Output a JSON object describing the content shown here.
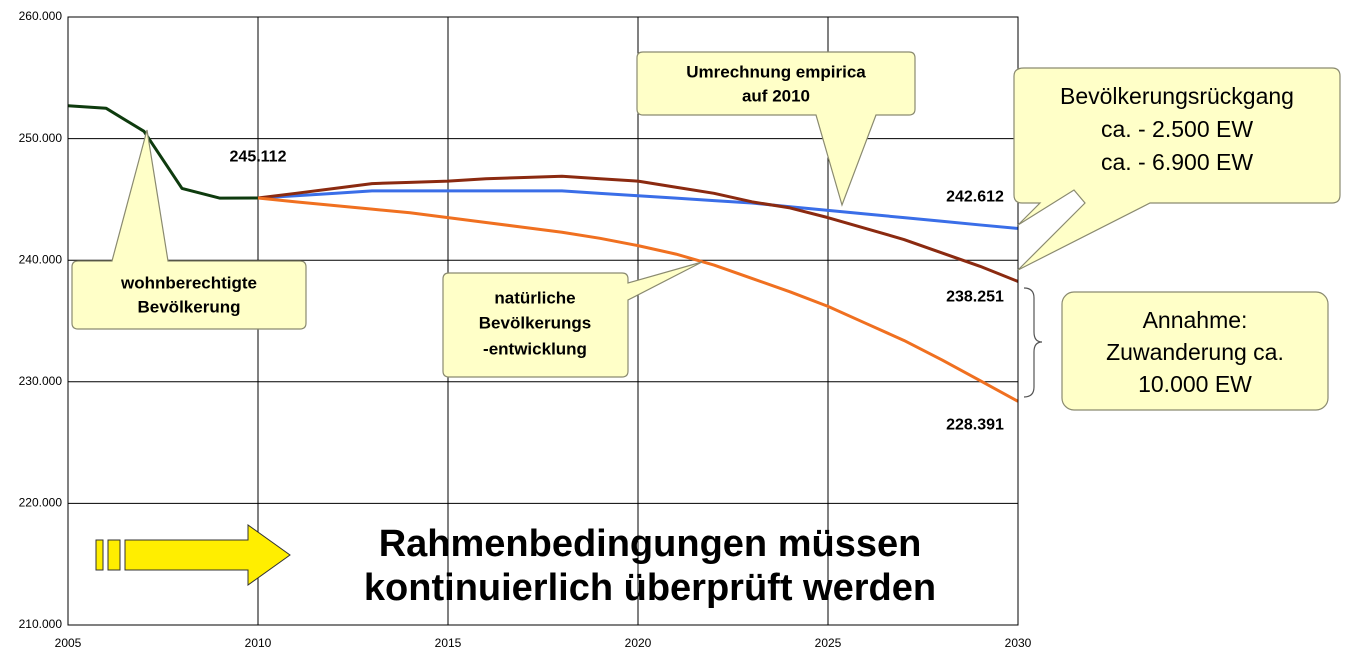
{
  "chart_data": {
    "type": "line",
    "x": [
      2005,
      2006,
      2007,
      2008,
      2009,
      2010,
      2011,
      2012,
      2013,
      2014,
      2015,
      2016,
      2017,
      2018,
      2019,
      2020,
      2021,
      2022,
      2023,
      2024,
      2025,
      2026,
      2027,
      2028,
      2029,
      2030
    ],
    "xlim": [
      2005,
      2030
    ],
    "xticks": [
      2005,
      2010,
      2015,
      2020,
      2025,
      2030
    ],
    "ylim": [
      210000,
      260000
    ],
    "yticks": [
      {
        "value": 210000,
        "label": "210.000"
      },
      {
        "value": 220000,
        "label": "220.000"
      },
      {
        "value": 230000,
        "label": "230.000"
      },
      {
        "value": 240000,
        "label": "240.000"
      },
      {
        "value": 250000,
        "label": "250.000"
      },
      {
        "value": 260000,
        "label": "260.000"
      }
    ],
    "grid": true,
    "series": [
      {
        "color": "#0e3b0e",
        "values": [
          252700,
          252500,
          250600,
          245900,
          245100,
          245112,
          null,
          null,
          null,
          null,
          null,
          null,
          null,
          null,
          null,
          null,
          null,
          null,
          null,
          null,
          null,
          null,
          null,
          null,
          null,
          null
        ],
        "value_labels": [
          null,
          null,
          null,
          null,
          null,
          "245.112",
          null,
          null,
          null,
          null,
          null,
          null,
          null,
          null,
          null,
          null,
          null,
          null,
          null,
          null,
          null,
          null,
          null,
          null,
          null,
          null
        ]
      },
      {
        "color": "#3a6ee8",
        "values": [
          null,
          null,
          null,
          null,
          null,
          245112,
          245300,
          245500,
          245700,
          245700,
          245700,
          245700,
          245700,
          245700,
          245500,
          245300,
          245100,
          244900,
          244700,
          244400,
          244100,
          243800,
          243500,
          243200,
          242900,
          242612
        ],
        "value_labels": [
          null,
          null,
          null,
          null,
          null,
          null,
          null,
          null,
          null,
          null,
          null,
          null,
          null,
          null,
          null,
          null,
          null,
          null,
          null,
          null,
          null,
          null,
          null,
          null,
          null,
          "242.612"
        ]
      },
      {
        "color": "#8b2a10",
        "values": [
          null,
          null,
          null,
          null,
          null,
          245112,
          245500,
          245900,
          246300,
          246400,
          246500,
          246700,
          246800,
          246900,
          246700,
          246500,
          246000,
          245500,
          244800,
          244300,
          243500,
          242600,
          241700,
          240600,
          239500,
          238251
        ],
        "value_labels": [
          null,
          null,
          null,
          null,
          null,
          null,
          null,
          null,
          null,
          null,
          null,
          null,
          null,
          null,
          null,
          null,
          null,
          null,
          null,
          null,
          null,
          null,
          null,
          null,
          null,
          "238.251"
        ]
      },
      {
        "color": "#f07020",
        "values": [
          null,
          null,
          null,
          null,
          null,
          245112,
          244800,
          244500,
          244200,
          243900,
          243500,
          243100,
          242700,
          242300,
          241800,
          241200,
          240500,
          239600,
          238500,
          237400,
          236200,
          234800,
          233400,
          231800,
          230100,
          228391
        ],
        "value_labels": [
          null,
          null,
          null,
          null,
          null,
          null,
          null,
          null,
          null,
          null,
          null,
          null,
          null,
          null,
          null,
          null,
          null,
          null,
          null,
          null,
          null,
          null,
          null,
          null,
          null,
          "228.391"
        ]
      }
    ],
    "annotations": [
      {
        "lines": [
          "wohnberechtigte",
          "Bevölkerung"
        ]
      },
      {
        "lines": [
          "natürliche",
          "Bevölkerungs",
          "-entwicklung"
        ]
      },
      {
        "lines": [
          "Umrechnung empirica",
          "auf 2010"
        ]
      },
      {
        "lines": [
          "Bevölkerungsrückgang",
          "ca. - 2.500 EW",
          "ca. - 6.900 EW"
        ]
      },
      {
        "lines": [
          "Annahme:",
          "Zuwanderung ca.",
          "10.000 EW"
        ]
      },
      {
        "lines": [
          "Rahmenbedingungen müssen",
          "kontinuierlich überprüft werden"
        ]
      }
    ]
  }
}
